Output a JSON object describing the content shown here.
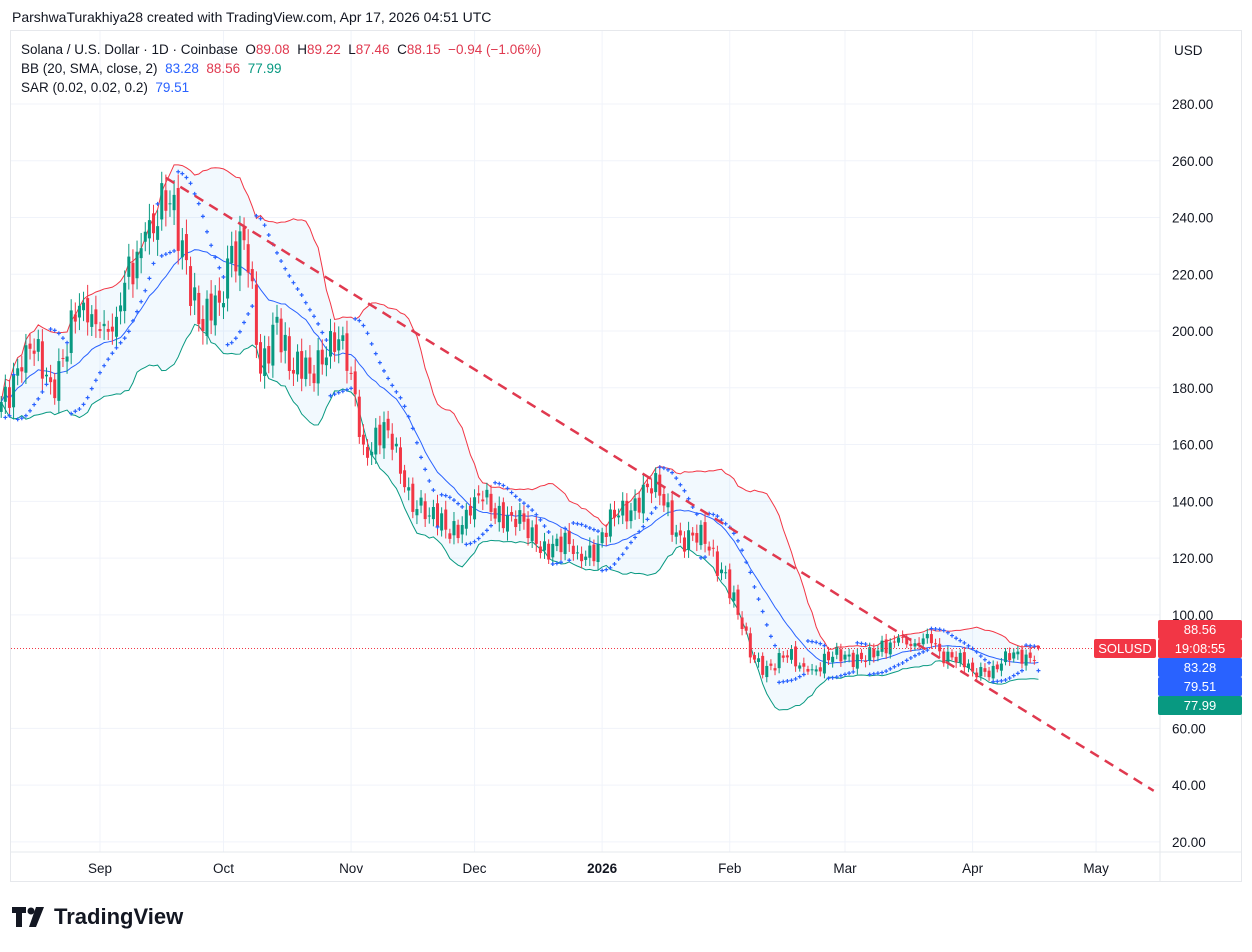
{
  "credit": "ParshwaTurakhiya28 created with TradingView.com, Apr 17, 2026 04:51 UTC",
  "legend": {
    "symbol": "Solana / U.S. Dollar · 1D · Coinbase",
    "o_label": "O",
    "o": "89.08",
    "h_label": "H",
    "h": "89.22",
    "l_label": "L",
    "l": "87.46",
    "c_label": "C",
    "c": "88.15",
    "change": "−0.94 (−1.06%)",
    "bb_label": "BB (20, SMA, close, 2)",
    "bb_basis": "83.28",
    "bb_upper": "88.56",
    "bb_lower": "77.99",
    "sar_label": "SAR (0.02, 0.02, 0.2)",
    "sar": "79.51"
  },
  "axis": {
    "currency": "USD"
  },
  "price_labels": {
    "symbol": "SOLUSD",
    "countdown": "19:08:55",
    "bb_upper": "88.56",
    "bb_basis": "83.28",
    "sar": "79.51",
    "bb_lower": "77.99"
  },
  "logo_text": "TradingView",
  "colors": {
    "up": "#089981",
    "down": "#f23645",
    "bb_basis": "#2962ff",
    "bb_upper": "#f23645",
    "bb_lower": "#089981",
    "sar": "#2962ff",
    "trendline": "#e0394f"
  },
  "chart_data": {
    "type": "candlestick",
    "title": "Solana / U.S. Dollar · 1D · Coinbase",
    "ylim": [
      14,
      292
    ],
    "y_ticks": [
      "280.00",
      "260.00",
      "240.00",
      "220.00",
      "200.00",
      "180.00",
      "160.00",
      "140.00",
      "120.00",
      "100.00",
      "60.00",
      "40.00",
      "20.00"
    ],
    "x_ticks": [
      {
        "label": "Sep",
        "date": "2025-09-01"
      },
      {
        "label": "Oct",
        "date": "2025-10-01"
      },
      {
        "label": "Nov",
        "date": "2025-11-01"
      },
      {
        "label": "Dec",
        "date": "2025-12-01"
      },
      {
        "label": "2026",
        "date": "2026-01-01",
        "bold": true
      },
      {
        "label": "Feb",
        "date": "2026-02-01"
      },
      {
        "label": "Mar",
        "date": "2026-03-01"
      },
      {
        "label": "Apr",
        "date": "2026-04-01"
      },
      {
        "label": "May",
        "date": "2026-05-01"
      }
    ],
    "close_anchors": [
      [
        "2025-08-08",
        175
      ],
      [
        "2025-08-14",
        195
      ],
      [
        "2025-08-20",
        182
      ],
      [
        "2025-08-28",
        210
      ],
      [
        "2025-09-01",
        200
      ],
      [
        "2025-09-05",
        205
      ],
      [
        "2025-09-12",
        235
      ],
      [
        "2025-09-18",
        245
      ],
      [
        "2025-09-22",
        225
      ],
      [
        "2025-09-26",
        200
      ],
      [
        "2025-09-30",
        210
      ],
      [
        "2025-10-03",
        230
      ],
      [
        "2025-10-06",
        232
      ],
      [
        "2025-10-10",
        185
      ],
      [
        "2025-10-14",
        205
      ],
      [
        "2025-10-18",
        185
      ],
      [
        "2025-10-22",
        185
      ],
      [
        "2025-10-27",
        200
      ],
      [
        "2025-11-01",
        185
      ],
      [
        "2025-11-04",
        160
      ],
      [
        "2025-11-10",
        165
      ],
      [
        "2025-11-14",
        145
      ],
      [
        "2025-11-20",
        135
      ],
      [
        "2025-11-24",
        130
      ],
      [
        "2025-11-30",
        135
      ],
      [
        "2025-12-03",
        140
      ],
      [
        "2025-12-10",
        135
      ],
      [
        "2025-12-16",
        125
      ],
      [
        "2025-12-20",
        125
      ],
      [
        "2025-12-26",
        122
      ],
      [
        "2025-12-31",
        125
      ],
      [
        "2026-01-05",
        135
      ],
      [
        "2026-01-12",
        145
      ],
      [
        "2026-01-15",
        142
      ],
      [
        "2026-01-20",
        128
      ],
      [
        "2026-01-26",
        125
      ],
      [
        "2026-01-31",
        115
      ],
      [
        "2026-02-03",
        100
      ],
      [
        "2026-02-06",
        85
      ],
      [
        "2026-02-10",
        82
      ],
      [
        "2026-02-15",
        85
      ],
      [
        "2026-02-20",
        80
      ],
      [
        "2026-02-25",
        84
      ],
      [
        "2026-03-02",
        86
      ],
      [
        "2026-03-08",
        85
      ],
      [
        "2026-03-14",
        92
      ],
      [
        "2026-03-18",
        90
      ],
      [
        "2026-03-22",
        90
      ],
      [
        "2026-03-27",
        85
      ],
      [
        "2026-04-01",
        80
      ],
      [
        "2026-04-06",
        82
      ],
      [
        "2026-04-10",
        84
      ],
      [
        "2026-04-14",
        86
      ],
      [
        "2026-04-17",
        88.15
      ]
    ],
    "last_candle": {
      "date": "2026-04-17",
      "open": 89.08,
      "high": 89.22,
      "low": 87.46,
      "close": 88.15
    },
    "indicators": {
      "bollinger": {
        "length": 20,
        "mult": 2
      },
      "sar": {
        "start": 0.02,
        "inc": 0.02,
        "max": 0.2
      }
    },
    "trendline": {
      "from": [
        "2025-09-17",
        254
      ],
      "to": [
        "2026-05-15",
        38
      ],
      "style": "dashed"
    },
    "current_price": 88.15
  }
}
